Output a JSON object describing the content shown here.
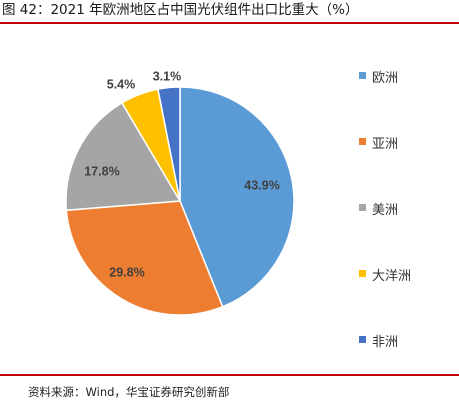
{
  "figure": {
    "title": "图 42：2021 年欧洲地区占中国光伏组件出口比重大（%）",
    "source": "资料来源：Wind，华宝证券研究创新部"
  },
  "chart_data": {
    "type": "pie",
    "title": "",
    "categories": [
      "欧洲",
      "亚洲",
      "美洲",
      "大洋洲",
      "非洲"
    ],
    "values": [
      43.9,
      29.8,
      17.8,
      5.4,
      3.1
    ],
    "labels": [
      "43.9%",
      "29.8%",
      "17.8%",
      "5.4%",
      "3.1%"
    ],
    "colors": [
      "#5b9bd5",
      "#ed7d31",
      "#a5a5a5",
      "#ffc000",
      "#4472c4"
    ],
    "legend_position": "right",
    "start_angle": "12 o'clock",
    "direction": "clockwise"
  }
}
